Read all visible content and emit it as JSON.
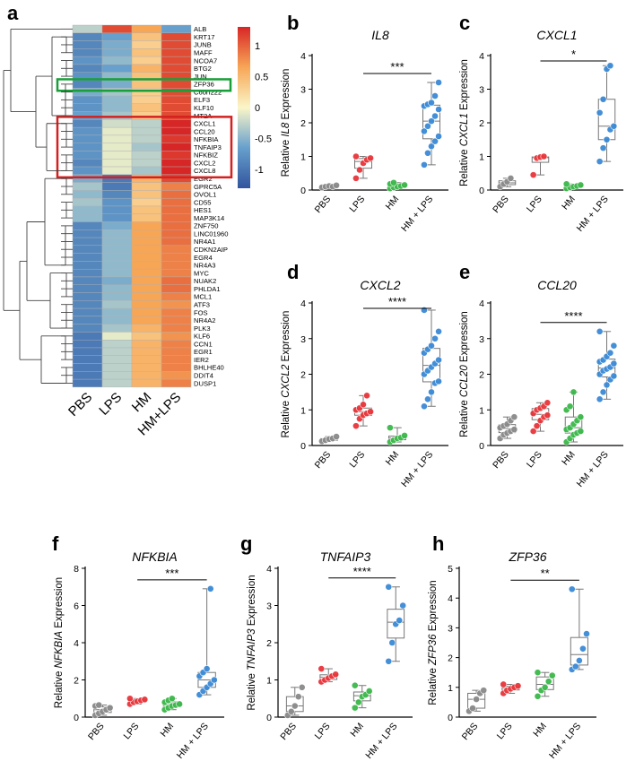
{
  "colors": {
    "PBS": "#8a8a8a",
    "LPS": "#e8353a",
    "HM": "#3cb84a",
    "HM + LPS": "#3a8ad6",
    "green_box": "#1a9e3a",
    "red_box": "#d42020"
  },
  "heatmap": {
    "panel_letter": "a",
    "columns": [
      "PBS",
      "LPS",
      "HM",
      "HM+LPS"
    ],
    "colorbar_ticks": [
      "1",
      "0.5",
      "0",
      "-0.5",
      "-1"
    ],
    "genes": [
      "ALB",
      "KRT17",
      "JUNB",
      "MAFF",
      "NCOA7",
      "BTG2",
      "JUN",
      "ZFP36",
      "C6orf222",
      "ELF3",
      "KLF10",
      "MT2A",
      "CXCL1",
      "CCL20",
      "NFKBIA",
      "TNFAIP3",
      "NFKBIZ",
      "CXCL2",
      "CXCL8",
      "EGR2",
      "GPRC5A",
      "OVOL1",
      "CD55",
      "HES1",
      "MAP3K14",
      "ZNF750",
      "LINC01960",
      "NR4A1",
      "CDKN2AIP",
      "EGR4",
      "NR4A3",
      "MYC",
      "NUAK2",
      "PHLDA1",
      "MCL1",
      "ATF3",
      "FOS",
      "NR4A2",
      "PLK3",
      "KLF6",
      "CCN1",
      "EGR1",
      "IER2",
      "BHLHE40",
      "DDIT4",
      "DUSP1"
    ],
    "values": [
      [
        -0.3,
        1.1,
        0.6,
        -0.7
      ],
      [
        -0.9,
        -0.7,
        0.4,
        1.1
      ],
      [
        -0.9,
        -0.6,
        0.3,
        1.1
      ],
      [
        -0.9,
        -0.6,
        0.4,
        1.1
      ],
      [
        -0.8,
        -0.5,
        0.3,
        1.1
      ],
      [
        -0.9,
        -0.7,
        0.5,
        1.1
      ],
      [
        -0.8,
        -0.5,
        0.4,
        1.1
      ],
      [
        -0.9,
        -0.6,
        0.4,
        1.1
      ],
      [
        -0.6,
        -0.4,
        0.3,
        1.1
      ],
      [
        -0.8,
        -0.5,
        0.3,
        1.1
      ],
      [
        -0.8,
        -0.5,
        0.4,
        1.1
      ],
      [
        -0.7,
        -0.4,
        0.3,
        1.1
      ],
      [
        -0.9,
        -0.2,
        -0.3,
        1.3
      ],
      [
        -0.8,
        -0.1,
        -0.3,
        1.3
      ],
      [
        -0.8,
        -0.1,
        -0.3,
        1.2
      ],
      [
        -0.8,
        -0.1,
        -0.4,
        1.3
      ],
      [
        -0.8,
        -0.1,
        -0.3,
        1.2
      ],
      [
        -0.9,
        -0.1,
        -0.3,
        1.3
      ],
      [
        -0.8,
        -0.1,
        -0.4,
        1.3
      ],
      [
        -0.6,
        -1.0,
        0.5,
        1.1
      ],
      [
        -0.4,
        -1.0,
        0.4,
        0.8
      ],
      [
        -0.5,
        -0.9,
        0.4,
        0.9
      ],
      [
        -0.4,
        -0.8,
        0.3,
        0.9
      ],
      [
        -0.5,
        -0.8,
        0.4,
        0.9
      ],
      [
        -0.5,
        -0.8,
        0.4,
        0.9
      ],
      [
        -0.9,
        -0.6,
        0.6,
        0.9
      ],
      [
        -0.9,
        -0.5,
        0.6,
        0.9
      ],
      [
        -0.9,
        -0.5,
        0.6,
        0.9
      ],
      [
        -0.9,
        -0.5,
        0.6,
        0.8
      ],
      [
        -0.9,
        -0.5,
        0.6,
        0.8
      ],
      [
        -0.9,
        -0.5,
        0.6,
        0.8
      ],
      [
        -0.9,
        -0.5,
        0.6,
        0.8
      ],
      [
        -0.9,
        -0.6,
        0.6,
        0.9
      ],
      [
        -0.9,
        -0.5,
        0.6,
        0.9
      ],
      [
        -0.9,
        -0.5,
        0.6,
        0.8
      ],
      [
        -0.9,
        -0.4,
        0.6,
        0.7
      ],
      [
        -0.9,
        -0.5,
        0.6,
        0.8
      ],
      [
        -0.9,
        -0.5,
        0.6,
        0.8
      ],
      [
        -0.9,
        -0.4,
        0.5,
        0.8
      ],
      [
        -1.0,
        -0.1,
        0.4,
        0.7
      ],
      [
        -1.0,
        -0.3,
        0.5,
        0.8
      ],
      [
        -1.0,
        -0.3,
        0.5,
        0.8
      ],
      [
        -1.0,
        -0.3,
        0.5,
        0.8
      ],
      [
        -1.0,
        -0.3,
        0.5,
        0.8
      ],
      [
        -1.0,
        -0.3,
        0.5,
        0.7
      ],
      [
        -1.0,
        -0.3,
        0.5,
        0.8
      ]
    ]
  },
  "chart_data": [
    {
      "type": "box",
      "panel": "b",
      "title": "IL8",
      "ylabel_prefix": "Relative ",
      "ylabel_gene": "IL8",
      "ylabel_suffix": " Expression",
      "ylim": [
        0,
        4
      ],
      "yticks": [
        "0",
        "1",
        "2",
        "3",
        "4"
      ],
      "categories": [
        "PBS",
        "LPS",
        "HM",
        "HM + LPS"
      ],
      "significance": "***",
      "series": [
        {
          "name": "PBS",
          "values": [
            0.08,
            0.1,
            0.12,
            0.1,
            0.14
          ]
        },
        {
          "name": "LPS",
          "values": [
            0.35,
            0.6,
            0.8,
            0.9,
            0.95,
            1.0
          ]
        },
        {
          "name": "HM",
          "values": [
            0.05,
            0.08,
            0.1,
            0.12,
            0.15,
            0.18,
            0.22
          ]
        },
        {
          "name": "HM + LPS",
          "values": [
            0.75,
            1.1,
            1.3,
            1.45,
            1.6,
            1.75,
            1.9,
            2.05,
            2.2,
            2.4,
            2.5,
            2.55,
            2.6,
            2.8,
            3.2
          ]
        }
      ]
    },
    {
      "type": "box",
      "panel": "c",
      "title": "CXCL1",
      "ylabel_prefix": "Relative ",
      "ylabel_gene": "CXCL1",
      "ylabel_suffix": " Expression",
      "ylim": [
        0,
        4
      ],
      "yticks": [
        "0",
        "1",
        "2",
        "3",
        "4"
      ],
      "categories": [
        "PBS",
        "LPS",
        "HM",
        "HM + LPS"
      ],
      "significance": "*",
      "series": [
        {
          "name": "PBS",
          "values": [
            0.1,
            0.18,
            0.25,
            0.35
          ]
        },
        {
          "name": "LPS",
          "values": [
            0.45,
            0.95,
            0.98,
            1.0
          ]
        },
        {
          "name": "HM",
          "values": [
            0.05,
            0.08,
            0.1,
            0.12,
            0.15,
            0.18
          ]
        },
        {
          "name": "HM + LPS",
          "values": [
            0.85,
            1.25,
            1.5,
            1.8,
            1.9,
            2.3,
            2.7,
            3.6,
            3.7
          ]
        }
      ]
    },
    {
      "type": "box",
      "panel": "d",
      "title": "CXCL2",
      "ylabel_prefix": "Relative ",
      "ylabel_gene": "CXCL2",
      "ylabel_suffix": " Expression",
      "ylim": [
        0,
        4
      ],
      "yticks": [
        "0",
        "1",
        "2",
        "3",
        "4"
      ],
      "categories": [
        "PBS",
        "LPS",
        "HM",
        "HM + LPS"
      ],
      "significance": "****",
      "series": [
        {
          "name": "PBS",
          "values": [
            0.12,
            0.15,
            0.18,
            0.2,
            0.25
          ]
        },
        {
          "name": "LPS",
          "values": [
            0.55,
            0.75,
            0.85,
            0.9,
            0.95,
            1.0,
            1.05,
            1.15,
            1.4
          ]
        },
        {
          "name": "HM",
          "values": [
            0.1,
            0.15,
            0.2,
            0.22,
            0.28,
            0.5
          ]
        },
        {
          "name": "HM + LPS",
          "values": [
            1.1,
            1.3,
            1.5,
            1.75,
            1.8,
            2.0,
            2.1,
            2.2,
            2.3,
            2.4,
            2.6,
            2.7,
            2.8,
            3.0,
            3.2,
            3.8
          ]
        }
      ]
    },
    {
      "type": "box",
      "panel": "e",
      "title": "CCL20",
      "ylabel_prefix": "Relative ",
      "ylabel_gene": "CCL20",
      "ylabel_suffix": " Expression",
      "ylim": [
        0,
        4
      ],
      "yticks": [
        "0",
        "1",
        "2",
        "3",
        "4"
      ],
      "categories": [
        "PBS",
        "LPS",
        "HM",
        "HM + LPS"
      ],
      "significance": "****",
      "series": [
        {
          "name": "PBS",
          "values": [
            0.2,
            0.3,
            0.35,
            0.4,
            0.45,
            0.5,
            0.55,
            0.6,
            0.7,
            0.8
          ]
        },
        {
          "name": "LPS",
          "values": [
            0.4,
            0.55,
            0.7,
            0.8,
            0.85,
            0.9,
            1.0,
            1.05,
            1.1,
            1.2
          ]
        },
        {
          "name": "HM",
          "values": [
            0.1,
            0.2,
            0.3,
            0.35,
            0.4,
            0.45,
            0.5,
            0.6,
            0.7,
            0.8,
            1.0,
            1.1,
            1.5
          ]
        },
        {
          "name": "HM + LPS",
          "values": [
            1.3,
            1.5,
            1.7,
            1.85,
            1.95,
            2.0,
            2.1,
            2.15,
            2.2,
            2.3,
            2.35,
            2.4,
            2.5,
            2.6,
            2.8,
            3.2
          ]
        }
      ]
    },
    {
      "type": "box",
      "panel": "f",
      "title": "NFKBIA",
      "ylabel_prefix": "Relative ",
      "ylabel_gene": "NFKBIA",
      "ylabel_suffix": " Expression",
      "ylim": [
        0,
        8
      ],
      "yticks": [
        "0",
        "2",
        "4",
        "6",
        "8"
      ],
      "categories": [
        "PBS",
        "LPS",
        "HM",
        "HM + LPS"
      ],
      "significance": "***",
      "series": [
        {
          "name": "PBS",
          "values": [
            0.1,
            0.2,
            0.3,
            0.4,
            0.5,
            0.6,
            0.65
          ]
        },
        {
          "name": "LPS",
          "values": [
            0.7,
            0.8,
            0.85,
            0.9,
            0.95,
            1.0
          ]
        },
        {
          "name": "HM",
          "values": [
            0.4,
            0.5,
            0.6,
            0.65,
            0.7,
            0.8,
            0.9,
            1.0
          ]
        },
        {
          "name": "HM + LPS",
          "values": [
            1.2,
            1.4,
            1.6,
            1.8,
            2.0,
            2.2,
            2.4,
            2.6,
            6.9
          ]
        }
      ]
    },
    {
      "type": "box",
      "panel": "g",
      "title": "TNFAIP3",
      "ylabel_prefix": "Relative ",
      "ylabel_gene": "TNFAIP3",
      "ylabel_suffix": " Expression",
      "ylim": [
        0,
        4
      ],
      "yticks": [
        "0",
        "1",
        "2",
        "3",
        "4"
      ],
      "categories": [
        "PBS",
        "LPS",
        "HM",
        "HM + LPS"
      ],
      "significance": "****",
      "series": [
        {
          "name": "PBS",
          "values": [
            0.05,
            0.15,
            0.3,
            0.55,
            0.8
          ]
        },
        {
          "name": "LPS",
          "values": [
            0.95,
            1.0,
            1.05,
            1.1,
            1.15,
            1.3
          ]
        },
        {
          "name": "HM",
          "values": [
            0.25,
            0.4,
            0.55,
            0.6,
            0.7,
            0.85
          ]
        },
        {
          "name": "HM + LPS",
          "values": [
            1.5,
            2.0,
            2.5,
            2.6,
            3.0,
            3.5
          ]
        }
      ]
    },
    {
      "type": "box",
      "panel": "h",
      "title": "ZFP36",
      "ylabel_prefix": "Relative ",
      "ylabel_gene": "ZFP36",
      "ylabel_suffix": " Expression",
      "ylim": [
        0,
        5
      ],
      "yticks": [
        "0",
        "1",
        "2",
        "3",
        "4",
        "5"
      ],
      "categories": [
        "PBS",
        "LPS",
        "HM",
        "HM + LPS"
      ],
      "significance": "**",
      "series": [
        {
          "name": "PBS",
          "values": [
            0.2,
            0.3,
            0.6,
            0.8,
            0.9
          ]
        },
        {
          "name": "LPS",
          "values": [
            0.8,
            0.9,
            0.95,
            1.0,
            1.05,
            1.1
          ]
        },
        {
          "name": "HM",
          "values": [
            0.7,
            0.9,
            1.0,
            1.2,
            1.4,
            1.5
          ]
        },
        {
          "name": "HM + LPS",
          "values": [
            1.6,
            1.7,
            1.9,
            2.3,
            2.8,
            4.3
          ]
        }
      ]
    }
  ]
}
